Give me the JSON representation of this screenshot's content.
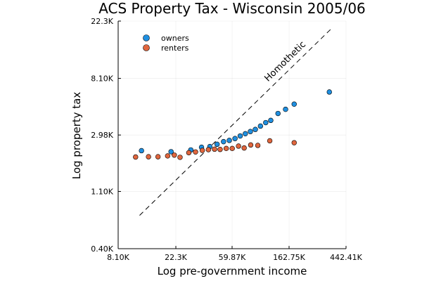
{
  "chart_data": {
    "type": "scatter",
    "title": "ACS Property Tax - Wisconsin 2005/06",
    "xlabel": "Log pre-government income",
    "ylabel": "Log property tax",
    "log_x": true,
    "log_y": true,
    "xlim": [
      8100,
      442410
    ],
    "ylim": [
      400,
      22300
    ],
    "xticks": [
      {
        "value": 8100,
        "label": "8.10K"
      },
      {
        "value": 22300,
        "label": "22.3K"
      },
      {
        "value": 59870,
        "label": "59.87K"
      },
      {
        "value": 162750,
        "label": "162.75K"
      },
      {
        "value": 442410,
        "label": "442.41K"
      }
    ],
    "yticks": [
      {
        "value": 400,
        "label": "0.40K"
      },
      {
        "value": 1100,
        "label": "1.10K"
      },
      {
        "value": 2980,
        "label": "2.98K"
      },
      {
        "value": 8100,
        "label": "8.10K"
      },
      {
        "value": 22300,
        "label": "22.3K"
      }
    ],
    "grid": true,
    "legend_position": "top-left",
    "series": [
      {
        "name": "owners",
        "color": "#1f8fe0",
        "points": [
          {
            "x": 12200,
            "y": 2260
          },
          {
            "x": 20500,
            "y": 2220
          },
          {
            "x": 29000,
            "y": 2290
          },
          {
            "x": 35000,
            "y": 2400
          },
          {
            "x": 40500,
            "y": 2430
          },
          {
            "x": 46000,
            "y": 2530
          },
          {
            "x": 51500,
            "y": 2650
          },
          {
            "x": 57000,
            "y": 2710
          },
          {
            "x": 63000,
            "y": 2800
          },
          {
            "x": 69000,
            "y": 2930
          },
          {
            "x": 75500,
            "y": 3050
          },
          {
            "x": 82500,
            "y": 3170
          },
          {
            "x": 90000,
            "y": 3290
          },
          {
            "x": 98500,
            "y": 3490
          },
          {
            "x": 108000,
            "y": 3710
          },
          {
            "x": 118000,
            "y": 3860
          },
          {
            "x": 134000,
            "y": 4360
          },
          {
            "x": 153000,
            "y": 4690
          },
          {
            "x": 178000,
            "y": 5140
          },
          {
            "x": 330000,
            "y": 6370
          }
        ]
      },
      {
        "name": "renters",
        "color": "#e0663e",
        "points": [
          {
            "x": 11000,
            "y": 2020
          },
          {
            "x": 13800,
            "y": 2030
          },
          {
            "x": 16300,
            "y": 2030
          },
          {
            "x": 19300,
            "y": 2060
          },
          {
            "x": 21700,
            "y": 2090
          },
          {
            "x": 24000,
            "y": 2010
          },
          {
            "x": 28000,
            "y": 2180
          },
          {
            "x": 31500,
            "y": 2210
          },
          {
            "x": 35500,
            "y": 2270
          },
          {
            "x": 39500,
            "y": 2300
          },
          {
            "x": 44000,
            "y": 2320
          },
          {
            "x": 48500,
            "y": 2310
          },
          {
            "x": 54000,
            "y": 2350
          },
          {
            "x": 60000,
            "y": 2350
          },
          {
            "x": 67000,
            "y": 2450
          },
          {
            "x": 74000,
            "y": 2370
          },
          {
            "x": 83000,
            "y": 2500
          },
          {
            "x": 94000,
            "y": 2480
          },
          {
            "x": 116000,
            "y": 2690
          },
          {
            "x": 178000,
            "y": 2600
          }
        ]
      }
    ],
    "reference_line": {
      "label": "Homothetic",
      "style": "dashed",
      "from": {
        "x": 11800,
        "y": 720
      },
      "to": {
        "x": 340000,
        "y": 19400
      }
    }
  }
}
